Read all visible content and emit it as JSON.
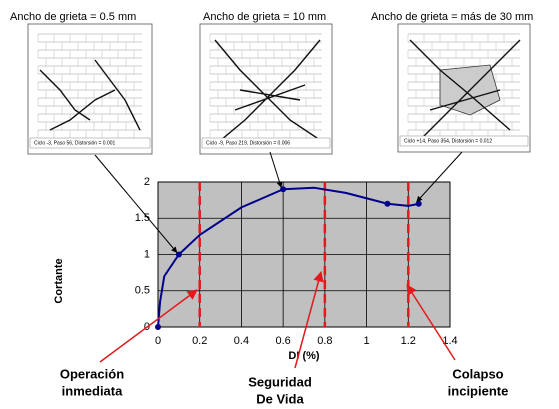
{
  "panels": [
    {
      "title": "Ancho de grieta =  0.5 mm",
      "caption": "Ciclo -3, Paso 56, Distorsión = 0.001"
    },
    {
      "title": "Ancho de grieta = 10 mm",
      "caption": "Ciclo -9, Paso 219, Distorsión = 0.006"
    },
    {
      "title": "Ancho de grieta = más de 30 mm",
      "caption": "Ciclo +14, Paso 354, Distorsión = 0.012"
    }
  ],
  "chart_data": {
    "type": "line",
    "xlabel": "DI (%)",
    "ylabel": "Cortante",
    "xlim": [
      0,
      1.4
    ],
    "ylim": [
      0,
      2
    ],
    "xticks": [
      0,
      0.2,
      0.4,
      0.6,
      0.8,
      {
        "value": 1,
        "label": "1"
      },
      1.2,
      1.4
    ],
    "yticks": [
      0,
      0.5,
      1,
      1.5,
      2
    ],
    "grid": true,
    "series": [
      {
        "color": "#00008b",
        "x": [
          0,
          0.01,
          0.03,
          0.1,
          0.2,
          0.4,
          0.6,
          0.75,
          0.9,
          1.1,
          1.2,
          1.25
        ],
        "values": [
          0,
          0.35,
          0.7,
          1.0,
          1.27,
          1.65,
          1.9,
          1.92,
          1.85,
          1.7,
          1.67,
          1.7
        ]
      },
      {
        "color": "#00008b",
        "x": [
          0,
          0.1,
          0.6,
          1.1,
          1.25
        ],
        "values": [
          0,
          1.0,
          1.9,
          1.7,
          1.7
        ],
        "markers": true
      }
    ],
    "vlines": [
      0.2,
      0.8,
      1.2
    ],
    "vline_color": "#e31a1c",
    "annotations": [
      {
        "lines": [
          "Operación",
          "inmediata"
        ]
      },
      {
        "lines": [
          "Seguridad",
          "De Vida"
        ]
      },
      {
        "lines": [
          "Colapso",
          "incipiente"
        ]
      }
    ]
  }
}
